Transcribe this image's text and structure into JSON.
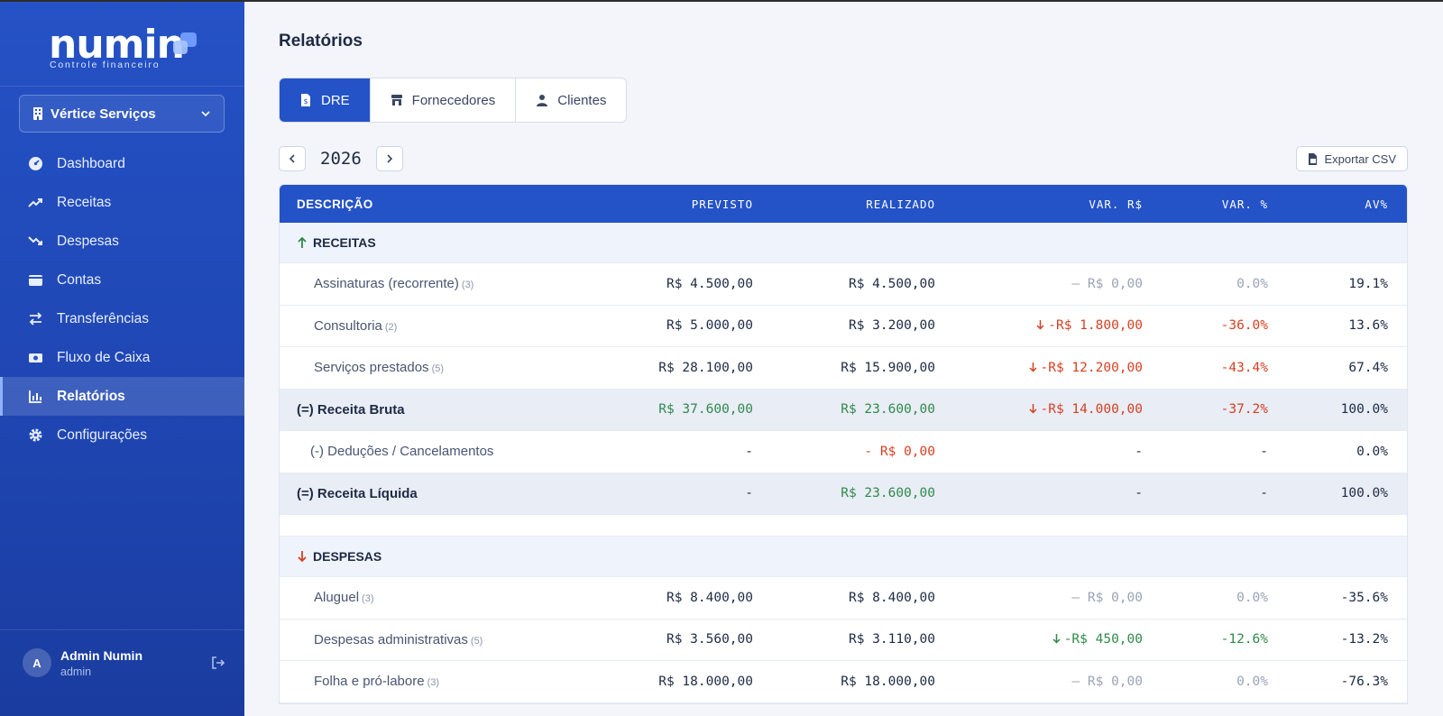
{
  "app": {
    "logo_text": "numin",
    "logo_subtitle": "Controle financeiro"
  },
  "sidebar": {
    "company": "Vértice Serviços",
    "items": [
      {
        "label": "Dashboard",
        "icon": "dashboard-icon"
      },
      {
        "label": "Receitas",
        "icon": "trending-up-icon"
      },
      {
        "label": "Despesas",
        "icon": "trending-down-icon"
      },
      {
        "label": "Contas",
        "icon": "wallet-icon"
      },
      {
        "label": "Transferências",
        "icon": "transfer-icon"
      },
      {
        "label": "Fluxo de Caixa",
        "icon": "cash-icon"
      },
      {
        "label": "Relatórios",
        "icon": "bar-chart-icon",
        "active": true
      },
      {
        "label": "Configurações",
        "icon": "gear-icon"
      }
    ],
    "user": {
      "initial": "A",
      "name": "Admin Numin",
      "role": "admin"
    }
  },
  "main": {
    "title": "Relatórios",
    "tabs": [
      {
        "label": "DRE",
        "active": true
      },
      {
        "label": "Fornecedores"
      },
      {
        "label": "Clientes"
      }
    ],
    "year": "2026",
    "export_label": "Exportar CSV"
  },
  "table": {
    "columns": [
      "DESCRIÇÃO",
      "PREVISTO",
      "REALIZADO",
      "VAR. R$",
      "VAR. %",
      "AV%"
    ],
    "receitas_section": "RECEITAS",
    "despesas_section": "DESPESAS",
    "rows": [
      {
        "desc": "Assinaturas (recorrente)",
        "count": "(3)",
        "prev": "R$ 4.500,00",
        "real": "R$ 4.500,00",
        "varr": "— R$ 0,00",
        "varp": "0.0%",
        "av": "19.1%"
      },
      {
        "desc": "Consultoria",
        "count": "(2)",
        "prev": "R$ 5.000,00",
        "real": "R$ 3.200,00",
        "varr": "-R$ 1.800,00",
        "varp": "-36.0%",
        "av": "13.6%"
      },
      {
        "desc": "Serviços prestados",
        "count": "(5)",
        "prev": "R$ 28.100,00",
        "real": "R$ 15.900,00",
        "varr": "-R$ 12.200,00",
        "varp": "-43.4%",
        "av": "67.4%"
      },
      {
        "desc": "(=) Receita Bruta",
        "prev": "R$ 37.600,00",
        "real": "R$ 23.600,00",
        "varr": "-R$ 14.000,00",
        "varp": "-37.2%",
        "av": "100.0%"
      },
      {
        "desc": "(-) Deduções / Cancelamentos",
        "prev": "-",
        "real": "- R$ 0,00",
        "varr": "-",
        "varp": "-",
        "av": "0.0%"
      },
      {
        "desc": "(=) Receita Líquida",
        "prev": "-",
        "real": "R$ 23.600,00",
        "varr": "-",
        "varp": "-",
        "av": "100.0%"
      },
      {
        "desc": "Aluguel",
        "count": "(3)",
        "prev": "R$ 8.400,00",
        "real": "R$ 8.400,00",
        "varr": "— R$ 0,00",
        "varp": "0.0%",
        "av": "-35.6%"
      },
      {
        "desc": "Despesas administrativas",
        "count": "(5)",
        "prev": "R$ 3.560,00",
        "real": "R$ 3.110,00",
        "varr": "-R$ 450,00",
        "varp": "-12.6%",
        "av": "-13.2%"
      },
      {
        "desc": "Folha e pró-labore",
        "count": "(3)",
        "prev": "R$ 18.000,00",
        "real": "R$ 18.000,00",
        "varr": "— R$ 0,00",
        "varp": "0.0%",
        "av": "-76.3%"
      }
    ]
  },
  "colors": {
    "primary": "#2452c7",
    "positive": "#2f8a4a",
    "negative": "#d64022",
    "muted": "#9aa3b5"
  }
}
